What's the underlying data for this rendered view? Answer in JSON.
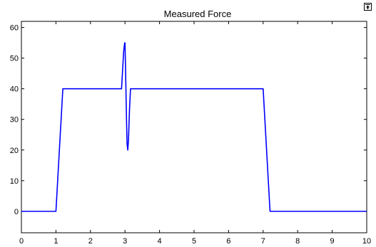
{
  "figure": {
    "dock_icon": "undock-figure-icon"
  },
  "chart_data": {
    "type": "line",
    "title": "Measured Force",
    "xlabel": "",
    "ylabel": "",
    "xlim": [
      0,
      10
    ],
    "ylim": [
      -7,
      62
    ],
    "grid": false,
    "legend": "none",
    "xticks": [
      0,
      1,
      2,
      3,
      4,
      5,
      6,
      7,
      8,
      9,
      10
    ],
    "yticks": [
      0,
      10,
      20,
      30,
      40,
      50,
      60
    ],
    "series": [
      {
        "color": "#0000ff",
        "x": [
          0,
          1.0,
          1.2,
          2.9,
          2.93,
          2.96,
          2.99,
          3.0,
          3.02,
          3.04,
          3.06,
          3.08,
          3.1,
          3.13,
          3.16,
          3.2,
          3.25,
          7.0,
          7.2,
          10
        ],
        "y": [
          0,
          0,
          40,
          40,
          46,
          52,
          55,
          55,
          44,
          32,
          22,
          20,
          23,
          33,
          40,
          40,
          40,
          40,
          0,
          0
        ]
      }
    ]
  }
}
